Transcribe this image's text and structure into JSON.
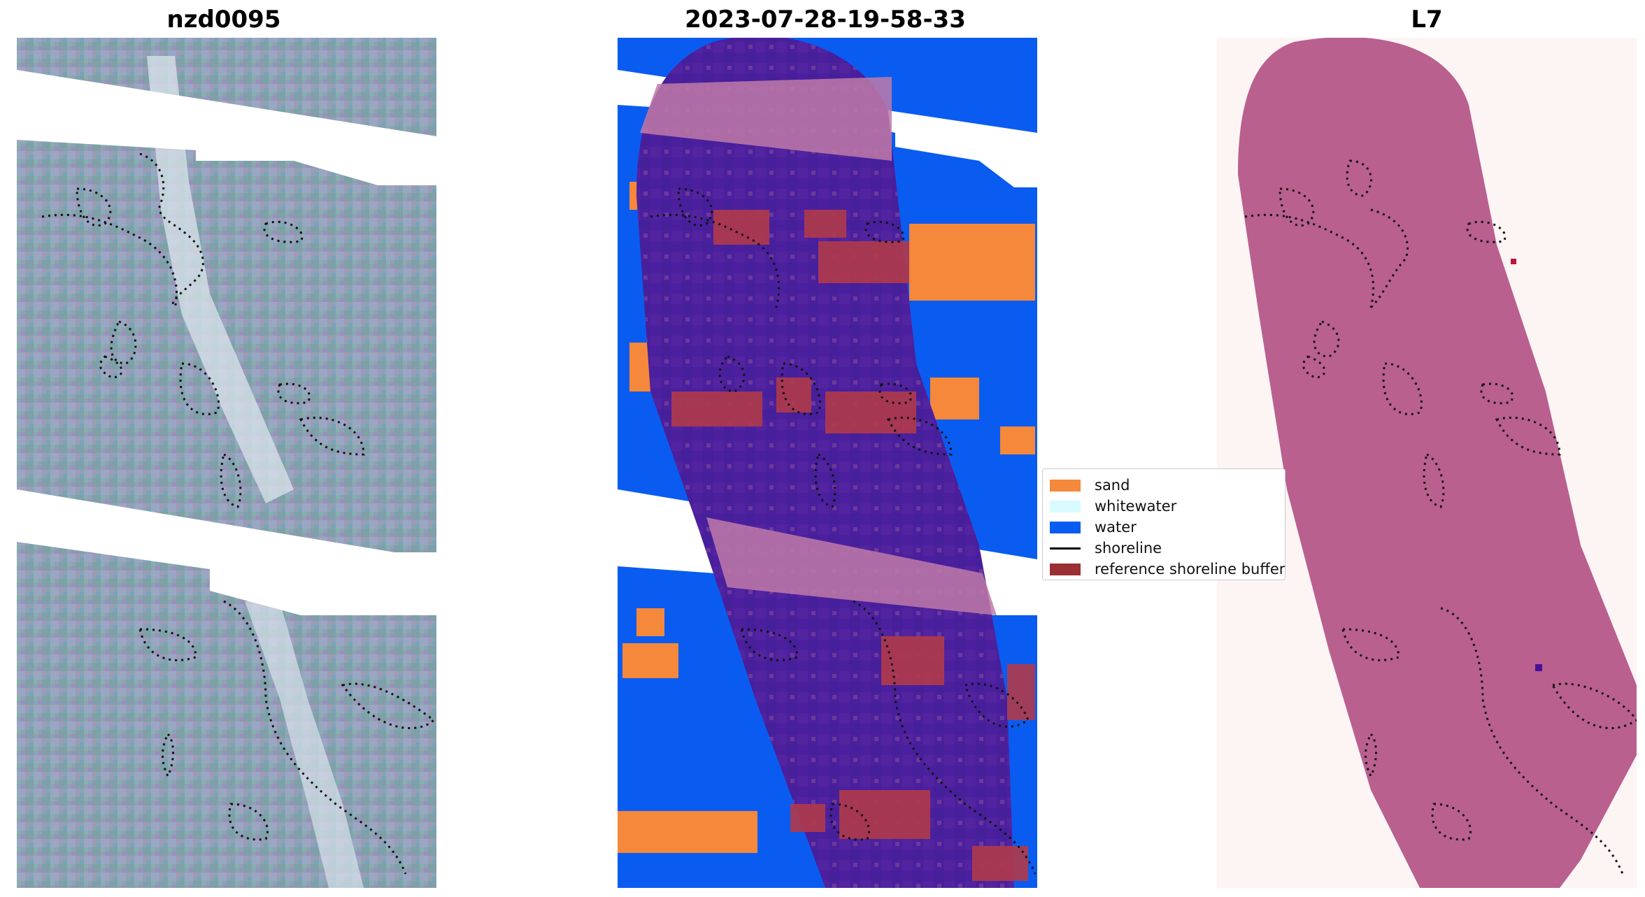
{
  "panels": [
    {
      "title": "nzd0095"
    },
    {
      "title": "2023-07-28-19-58-33"
    },
    {
      "title": "L7"
    }
  ],
  "legend": {
    "items": [
      {
        "label": "sand",
        "color": "#f5883a"
      },
      {
        "label": "whitewater",
        "color": "#d7fbff"
      },
      {
        "label": "water",
        "color": "#0a5cf0"
      },
      {
        "label": "shoreline",
        "color": "#000000",
        "kind": "line"
      },
      {
        "label": "reference shoreline buffer",
        "color": "#9a2f34"
      }
    ]
  },
  "colors": {
    "imagery_base": "#8ea2b4",
    "classification_overlay": "#4b1f9e",
    "buffer_band": "#c07aa8",
    "mask_pink": "#b9608f",
    "mask_background": "#fdf4f4"
  }
}
